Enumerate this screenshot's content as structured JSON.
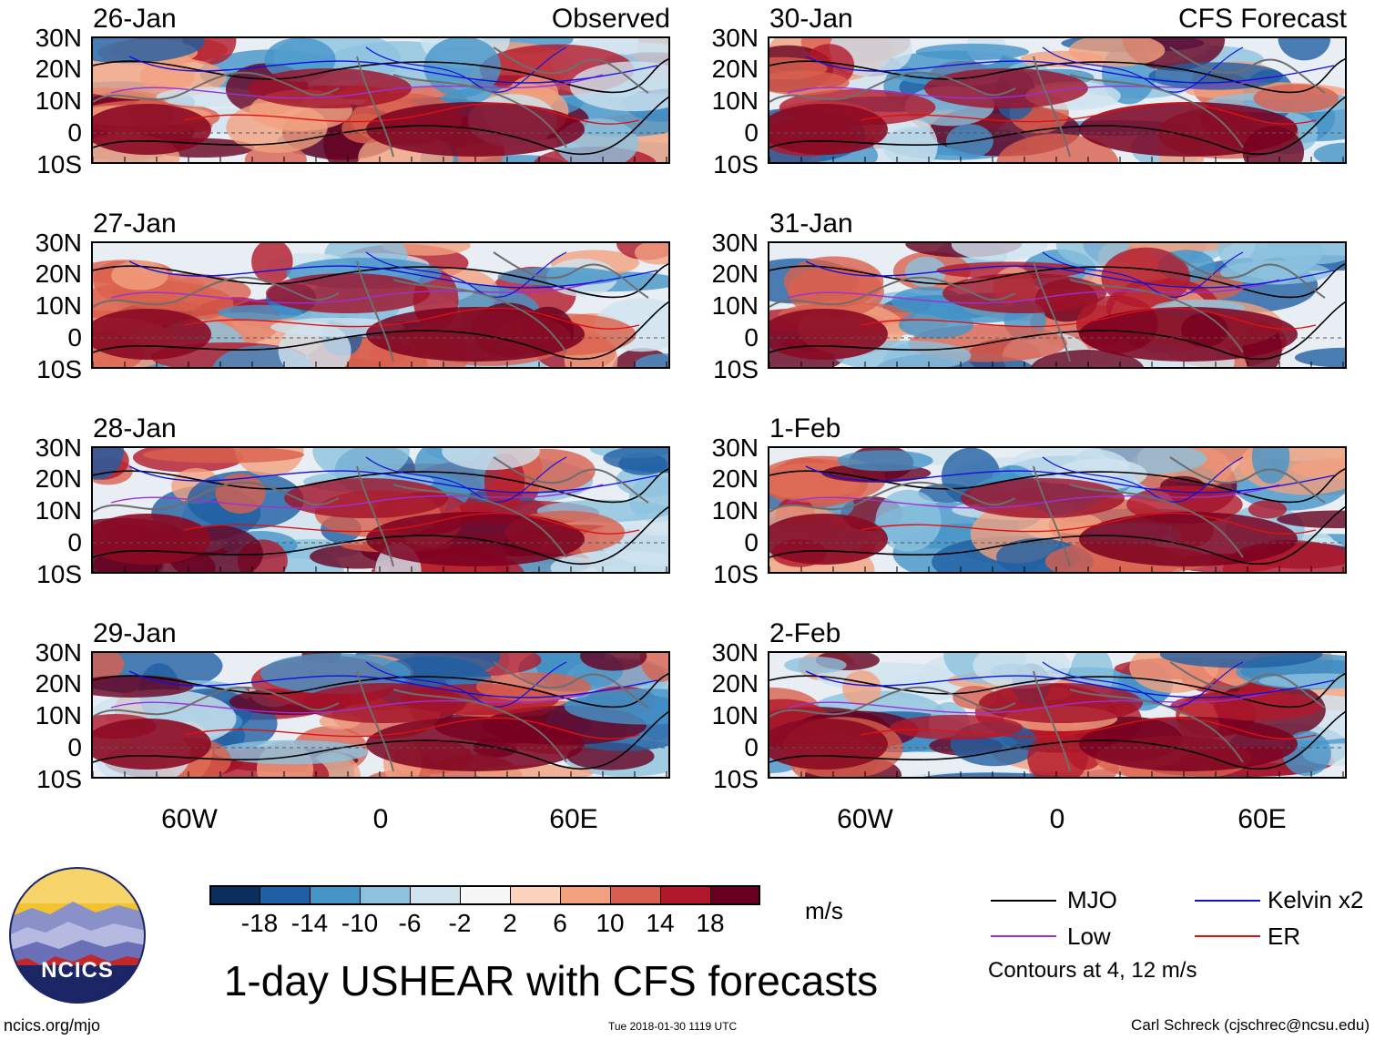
{
  "left_column_label": "Observed",
  "right_column_label": "CFS Forecast",
  "panels_left": [
    {
      "date": "26-Jan"
    },
    {
      "date": "27-Jan"
    },
    {
      "date": "28-Jan"
    },
    {
      "date": "29-Jan"
    }
  ],
  "panels_right": [
    {
      "date": "30-Jan"
    },
    {
      "date": "31-Jan"
    },
    {
      "date": "1-Feb"
    },
    {
      "date": "2-Feb"
    }
  ],
  "lat_labels": [
    "30N",
    "20N",
    "10N",
    "0",
    "10S"
  ],
  "lon_labels": [
    "60W",
    "0",
    "60E"
  ],
  "colorbar": {
    "colors": [
      "#0b2e5e",
      "#1f5fa3",
      "#4595c9",
      "#8cc2de",
      "#cfe4ef",
      "#f7f7f7",
      "#fbd3bd",
      "#f2a17f",
      "#d9604e",
      "#b2182b",
      "#67001f"
    ],
    "labels": [
      "-18",
      "-14",
      "-10",
      "-6",
      "-2",
      "2",
      "6",
      "10",
      "14",
      "18"
    ],
    "units": "m/s"
  },
  "title": "1-day USHEAR with CFS forecasts",
  "logo_text": "NCICS",
  "legend": {
    "items": [
      {
        "label": "MJO",
        "color": "#000000"
      },
      {
        "label": "Kelvin x2",
        "color": "#1010e0"
      },
      {
        "label": "Low",
        "color": "#9b30d9"
      },
      {
        "label": "ER",
        "color": "#e01010"
      }
    ],
    "note": "Contours at 4, 12 m/s"
  },
  "footer": {
    "website": "ncics.org/mjo",
    "timestamp": "Tue 2018-01-30 1119 UTC",
    "author": "Carl Schreck (cjschrec@ncsu.edu)"
  }
}
